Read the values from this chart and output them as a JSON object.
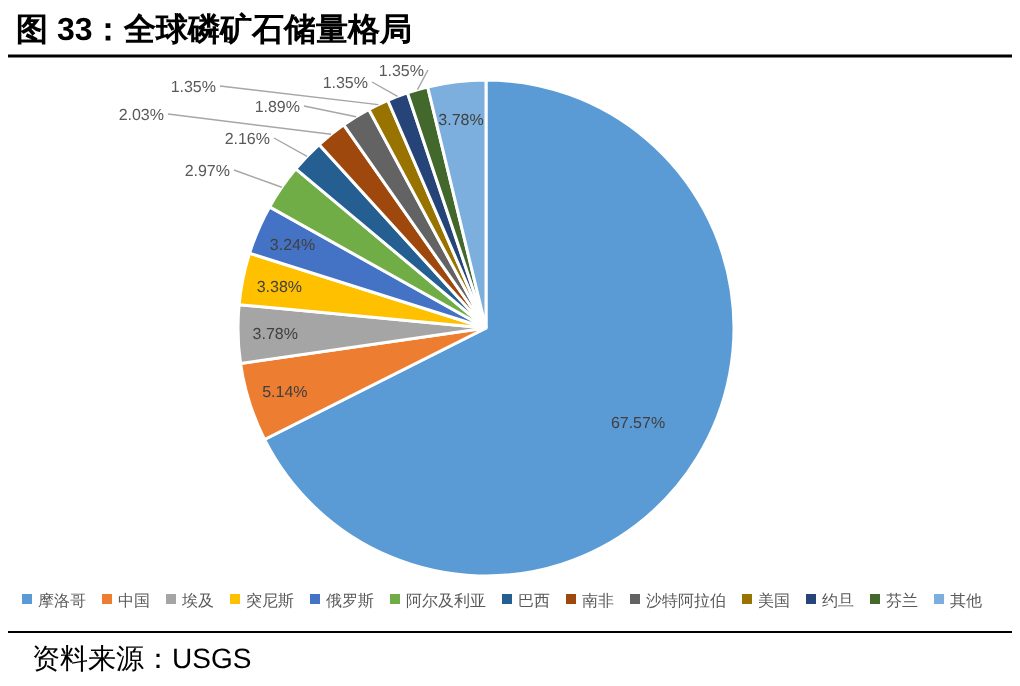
{
  "chart_data": {
    "type": "pie",
    "title": "图 33：全球磷矿石储量格局",
    "categories": [
      "摩洛哥",
      "中国",
      "埃及",
      "突尼斯",
      "俄罗斯",
      "阿尔及利亚",
      "巴西",
      "南非",
      "沙特阿拉伯",
      "美国",
      "约旦",
      "芬兰",
      "其他"
    ],
    "values": [
      67.57,
      5.14,
      3.78,
      3.38,
      3.24,
      2.97,
      2.16,
      2.03,
      1.89,
      1.35,
      1.35,
      1.35,
      3.78
    ],
    "colors": [
      "#5b9bd5",
      "#ed7d31",
      "#a5a5a5",
      "#ffc000",
      "#4472c4",
      "#70ad47",
      "#255e91",
      "#9e480e",
      "#636363",
      "#997300",
      "#264478",
      "#43682b",
      "#7cafdd"
    ],
    "value_labels": [
      "67.57%",
      "5.14%",
      "3.78%",
      "3.38%",
      "3.24%",
      "2.97%",
      "2.16%",
      "2.03%",
      "1.89%",
      "1.35%",
      "1.35%",
      "1.35%",
      "3.78%"
    ],
    "legend": "bottom",
    "annotations": [
      "资料来源：USGS"
    ]
  }
}
